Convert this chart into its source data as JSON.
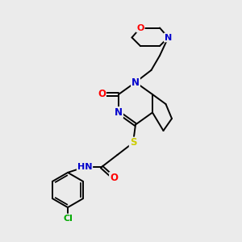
{
  "background_color": "#ebebeb",
  "atom_colors": {
    "C": "#000000",
    "N": "#0000cc",
    "O": "#ff0000",
    "S": "#cccc00",
    "Cl": "#00aa00",
    "H": "#555555"
  },
  "bond_color": "#000000",
  "bond_width": 1.4,
  "dbo": 0.055,
  "font_size_atom": 8.5
}
